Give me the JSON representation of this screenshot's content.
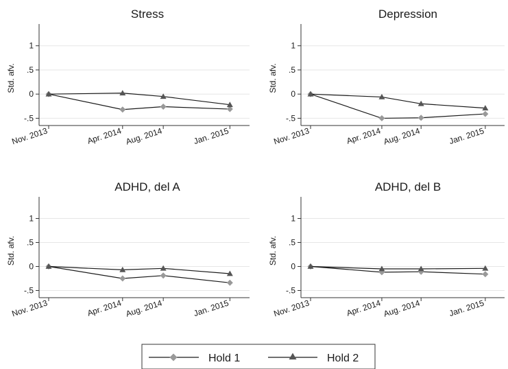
{
  "chart_data": [
    {
      "type": "line",
      "title": "Stress",
      "ylabel": "Std. afv.",
      "categories": [
        "Nov. 2013",
        "Apr. 2014",
        "Aug. 2014",
        "Jan. 2015"
      ],
      "yticks": [
        "1",
        ".5",
        "0",
        "-.5"
      ],
      "ylim": [
        -0.65,
        1.45
      ],
      "grid": true,
      "series": [
        {
          "name": "Hold 1",
          "values": [
            0,
            -0.32,
            -0.26,
            -0.31
          ]
        },
        {
          "name": "Hold 2",
          "values": [
            0,
            0.02,
            -0.05,
            -0.22
          ]
        }
      ]
    },
    {
      "type": "line",
      "title": "Depression",
      "ylabel": "Std. afv.",
      "categories": [
        "Nov. 2013",
        "Apr. 2014",
        "Aug. 2014",
        "Jan. 2015"
      ],
      "yticks": [
        "1",
        ".5",
        "0",
        "-.5"
      ],
      "ylim": [
        -0.65,
        1.45
      ],
      "grid": true,
      "series": [
        {
          "name": "Hold 1",
          "values": [
            0,
            -0.5,
            -0.49,
            -0.41
          ]
        },
        {
          "name": "Hold 2",
          "values": [
            0,
            -0.06,
            -0.2,
            -0.29
          ]
        }
      ]
    },
    {
      "type": "line",
      "title": "ADHD, del A",
      "ylabel": "Std. afv.",
      "categories": [
        "Nov. 2013",
        "Apr. 2014",
        "Aug. 2014",
        "Jan. 2015"
      ],
      "yticks": [
        "1",
        ".5",
        "0",
        "-.5"
      ],
      "ylim": [
        -0.65,
        1.45
      ],
      "grid": true,
      "series": [
        {
          "name": "Hold 1",
          "values": [
            0,
            -0.25,
            -0.19,
            -0.34
          ]
        },
        {
          "name": "Hold 2",
          "values": [
            0,
            -0.07,
            -0.04,
            -0.15
          ]
        }
      ]
    },
    {
      "type": "line",
      "title": "ADHD, del B",
      "ylabel": "Std. afv.",
      "categories": [
        "Nov. 2013",
        "Apr. 2014",
        "Aug. 2014",
        "Jan. 2015"
      ],
      "yticks": [
        "1",
        ".5",
        "0",
        "-.5"
      ],
      "ylim": [
        -0.65,
        1.45
      ],
      "grid": true,
      "series": [
        {
          "name": "Hold 1",
          "values": [
            0,
            -0.12,
            -0.11,
            -0.16
          ]
        },
        {
          "name": "Hold 2",
          "values": [
            0,
            -0.05,
            -0.05,
            -0.04
          ]
        }
      ]
    }
  ],
  "legend": {
    "placement": "bottom",
    "items": [
      {
        "label": "Hold 1",
        "marker": "diamond-icon",
        "color": "#999999",
        "line_color": "#1a1a1a"
      },
      {
        "label": "Hold 2",
        "marker": "triangle-icon",
        "color": "#555555",
        "line_color": "#1a1a1a"
      }
    ]
  },
  "colors": {
    "line": "#1a1a1a",
    "hold1_marker": "#999999",
    "hold2_marker": "#555555",
    "grid": "#e6e6e6"
  }
}
